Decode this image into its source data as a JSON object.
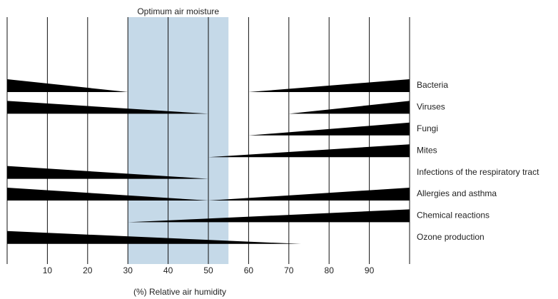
{
  "chart_data": {
    "type": "wedge",
    "band": [
      30,
      55
    ],
    "band_label": "Optimum air moisture",
    "band_color": "#c5d9e8",
    "xlabel": "(%) Relative air humidity",
    "xlim": [
      0,
      100
    ],
    "xticks": [
      10,
      20,
      30,
      40,
      50,
      60,
      70,
      80,
      90
    ],
    "color": "#000000",
    "categories": [
      "Bacteria",
      "Viruses",
      "Fungi",
      "Mites",
      "Infections of the respiratory tract",
      "Allergies and asthma",
      "Chemical reactions",
      "Ozone production"
    ],
    "decreasing_end": [
      30,
      50,
      null,
      null,
      50,
      50,
      null,
      73
    ],
    "increasing_start": [
      60,
      70,
      60,
      50,
      null,
      50,
      30,
      null
    ]
  }
}
